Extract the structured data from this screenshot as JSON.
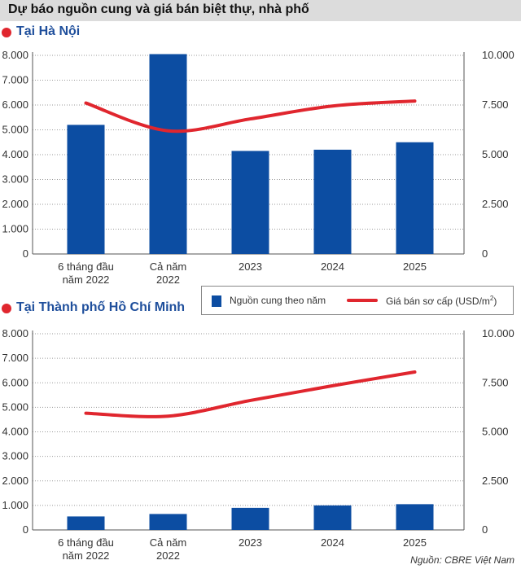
{
  "title": "Dự báo nguồn cung và giá bán biệt thự, nhà phố",
  "legend": {
    "bar_label": "Nguồn cung theo năm",
    "line_label": "Giá bán sơ cấp (USD/m",
    "line_label_sup": "2",
    "line_label_end": ")"
  },
  "source": "Nguồn: CBRE Việt Nam",
  "colors": {
    "bar": "#0c4da2",
    "line": "#e0262e",
    "heading": "#1f4f9c"
  },
  "chart_data": [
    {
      "type": "bar",
      "title": "Tại Hà Nội",
      "categories": [
        "6 tháng đầu\nnăm 2022",
        "Cả năm\n2022",
        "2023",
        "2024",
        "2025"
      ],
      "series": [
        {
          "name": "Nguồn cung theo năm",
          "type": "bar",
          "axis": "left",
          "values": [
            5200,
            8050,
            4150,
            4200,
            4500
          ]
        },
        {
          "name": "Giá bán sơ cấp (USD/m2)",
          "type": "line",
          "axis": "right",
          "values": [
            7600,
            6200,
            6800,
            7450,
            7700
          ]
        }
      ],
      "ylim_left": [
        0,
        8000
      ],
      "yticks_left": [
        "0",
        "1.000",
        "2.000",
        "3.000",
        "4.000",
        "5.000",
        "6.000",
        "7.000",
        "8.000"
      ],
      "ylim_right": [
        0,
        10000
      ],
      "yticks_right": [
        "0",
        "2.500",
        "5.000",
        "7.500",
        "10.000"
      ]
    },
    {
      "type": "bar",
      "title": "Tại Thành phố Hồ Chí Minh",
      "categories": [
        "6 tháng đầu\nnăm 2022",
        "Cả năm\n2022",
        "2023",
        "2024",
        "2025"
      ],
      "series": [
        {
          "name": "Nguồn cung theo năm",
          "type": "bar",
          "axis": "left",
          "values": [
            550,
            650,
            900,
            1000,
            1050
          ]
        },
        {
          "name": "Giá bán sơ cấp (USD/m2)",
          "type": "line",
          "axis": "right",
          "values": [
            5950,
            5800,
            6600,
            7350,
            8050
          ]
        }
      ],
      "ylim_left": [
        0,
        8000
      ],
      "yticks_left": [
        "0",
        "1.000",
        "2.000",
        "3.000",
        "4.000",
        "5.000",
        "6.000",
        "7.000",
        "8.000"
      ],
      "ylim_right": [
        0,
        10000
      ],
      "yticks_right": [
        "0",
        "2.500",
        "5.000",
        "7.500",
        "10.000"
      ]
    }
  ]
}
